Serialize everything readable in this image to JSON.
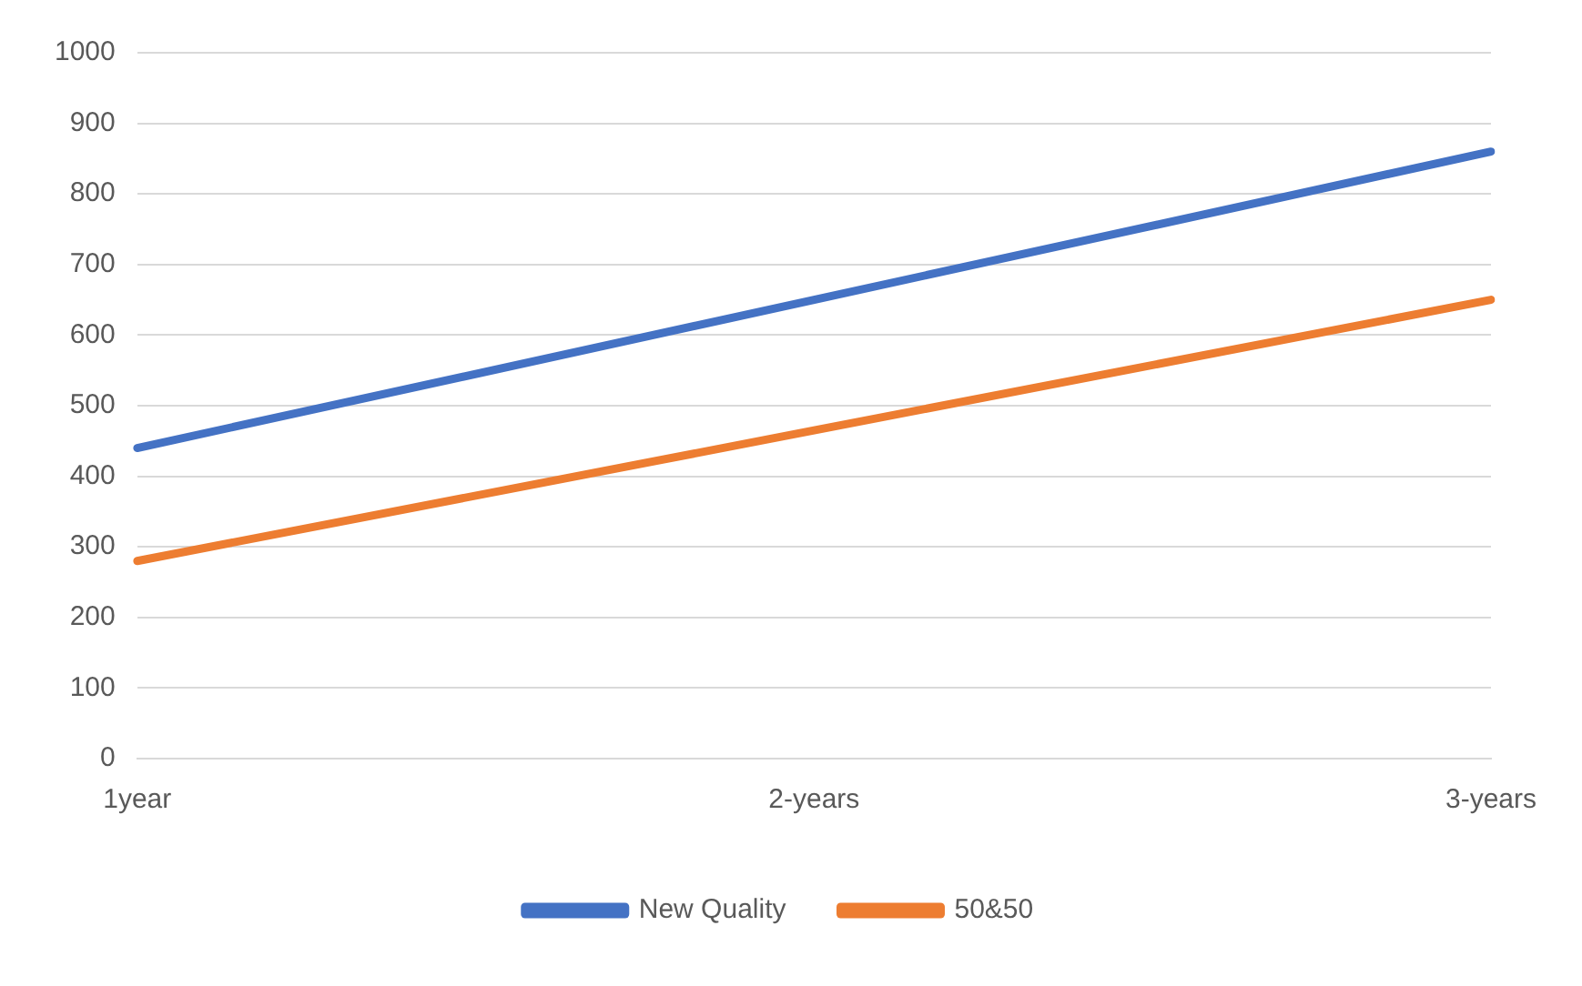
{
  "chart_data": {
    "type": "line",
    "categories": [
      "1year",
      "2-years",
      "3-years"
    ],
    "series": [
      {
        "name": "New Quality",
        "color": "#4472c4",
        "values": [
          440,
          650,
          860
        ]
      },
      {
        "name": "50&50",
        "color": "#ed7d31",
        "values": [
          280,
          465,
          650
        ]
      }
    ],
    "ylim": [
      0,
      1000
    ],
    "yticks": [
      0,
      100,
      200,
      300,
      400,
      500,
      600,
      700,
      800,
      900,
      1000
    ],
    "grid": "y",
    "legend": "bottom",
    "marker": "none"
  }
}
